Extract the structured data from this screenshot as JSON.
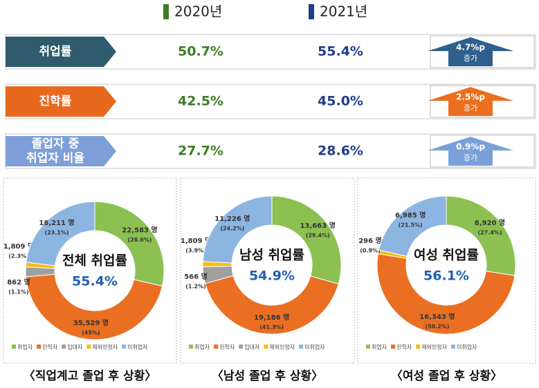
{
  "legend": [
    {
      "label": "2020년",
      "color": "#3e7d24"
    },
    {
      "label": "2021년",
      "color": "#1f3d8a"
    }
  ],
  "rows": [
    {
      "label": [
        "취업률"
      ],
      "value_2020": "50.7%",
      "value_2021": "55.4%",
      "change": "4.7%p",
      "change_note": "증가",
      "color": "#2f5b6c",
      "arrow_color": "#2f5f8c"
    },
    {
      "label": [
        "진학률"
      ],
      "value_2020": "42.5%",
      "value_2021": "45.0%",
      "change": "2.5%p",
      "change_note": "증가",
      "color": "#e8691d",
      "arrow_color": "#ea6f1e"
    },
    {
      "label": [
        "졸업자 중",
        "취업자 비율"
      ],
      "value_2020": "27.7%",
      "value_2021": "28.6%",
      "change": "0.9%p",
      "change_note": "증가",
      "color": "#7f9fd8",
      "arrow_color": "#7aa0da"
    }
  ],
  "chart_data": [
    {
      "type": "pie",
      "center_label": "전체 취업률",
      "center_value": "55.4%",
      "caption": "〈직업계고 졸업 후 상황〉",
      "categories": [
        "취업자",
        "진학자",
        "입대자",
        "제외인정자",
        "미취업자"
      ],
      "values": [
        22583,
        35529,
        1809,
        862,
        18211
      ],
      "value_labels": [
        "22,583 명",
        "35,529 명",
        "1,809 명",
        "862 명",
        "18,211 명"
      ],
      "share_labels": [
        "(28.6%)",
        "(45%)",
        "(2.3%)",
        "(1.1%)",
        "(23.1%)"
      ],
      "colors": [
        "#8cc152",
        "#ea6f22",
        "#a0a0a0",
        "#f7be10",
        "#8db5e2"
      ]
    },
    {
      "type": "pie",
      "center_label": "남성 취업률",
      "center_value": "54.9%",
      "caption": "〈남성 졸업 후 상황〉",
      "categories": [
        "취업자",
        "진학자",
        "입대자",
        "제외인정자",
        "미취업자"
      ],
      "values": [
        13663,
        19186,
        1809,
        566,
        11226
      ],
      "value_labels": [
        "13,663 명",
        "19,186 명",
        "1,809 명",
        "566 명",
        "11,226 명"
      ],
      "share_labels": [
        "(29.4%)",
        "(41.3%)",
        "(3.9%)",
        "(1.2%)",
        "(24.2%)"
      ],
      "colors": [
        "#8cc152",
        "#ea6f22",
        "#a0a0a0",
        "#f7be10",
        "#8db5e2"
      ]
    },
    {
      "type": "pie",
      "center_label": "여성 취업률",
      "center_value": "56.1%",
      "caption": "〈여성 졸업 후 상황〉",
      "categories": [
        "취업자",
        "진학자",
        "제외인정자",
        "미취업자"
      ],
      "values": [
        8920,
        16343,
        296,
        6985
      ],
      "value_labels": [
        "8,920 명",
        "16,343 명",
        "296 명",
        "6,985 명"
      ],
      "share_labels": [
        "(27.4%)",
        "(50.2%)",
        "(0.9%)",
        "(21.5%)"
      ],
      "colors": [
        "#8cc152",
        "#ea6f22",
        "#f7be10",
        "#8db5e2"
      ]
    }
  ]
}
